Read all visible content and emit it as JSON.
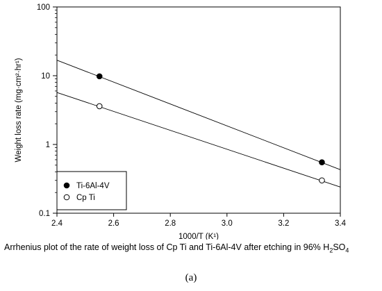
{
  "chart_data": {
    "type": "scatter",
    "xlabel": "1000/T",
    "xlabel_unit": "(K¹)",
    "ylabel": "Weight loss rate (mg·cm²·hr¹)",
    "xlim": [
      2.4,
      3.4
    ],
    "ylim": [
      0.1,
      100
    ],
    "y_scale": "log",
    "grid": false,
    "legend_placement": "bottom-left",
    "x_ticks": [
      2.4,
      2.6,
      2.8,
      3.0,
      3.2,
      3.4
    ],
    "x_tick_labels": [
      "2.4",
      "2.6",
      "2.8",
      "3.0",
      "3.2",
      "3.4"
    ],
    "y_ticks": [
      0.1,
      1,
      10,
      100
    ],
    "y_tick_labels": [
      "0.1",
      "1",
      "10",
      "100"
    ],
    "series": [
      {
        "name": "Ti-6Al-4V",
        "marker": "filled-circle",
        "color": "#000000",
        "x": [
          2.55,
          3.335
        ],
        "y": [
          9.8,
          0.55
        ],
        "fit_line": {
          "x": [
            2.4,
            3.4
          ],
          "y": [
            16.8,
            0.43
          ]
        }
      },
      {
        "name": "Cp Ti",
        "marker": "open-circle",
        "color": "#000000",
        "x": [
          2.55,
          3.335
        ],
        "y": [
          3.6,
          0.3
        ],
        "fit_line": {
          "x": [
            2.4,
            3.4
          ],
          "y": [
            5.7,
            0.24
          ]
        }
      }
    ]
  },
  "caption": {
    "text": "Arrhenius plot of the rate of weight loss of  Cp Ti and Ti-6Al-4V after etching in 96% H",
    "sub": "2",
    "suffix": "SO",
    "sub2": "4"
  },
  "panel_label": "(a)"
}
